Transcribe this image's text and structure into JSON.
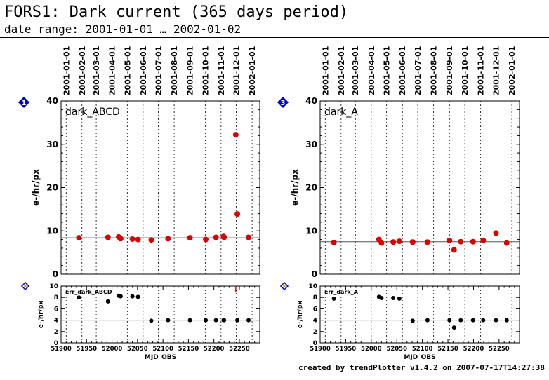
{
  "page": {
    "title": "FORS1: Dark current (365 days period)",
    "subtitle": "date range: 2001-01-01 … 2002-01-02",
    "credit": "created by trendPlotter v1.4.2 on 2007-07-17T14:27:38"
  },
  "chart_data": [
    {
      "type": "scatter",
      "badge": "1",
      "label": "dark_ABCD",
      "xlabel": "",
      "ylabel": "e-/hr/px",
      "xlim": [
        51900,
        52290
      ],
      "ylim": [
        0,
        40
      ],
      "yticks": [
        0,
        10,
        20,
        30,
        40
      ],
      "date_ticks": [
        "2001-01-01",
        "2001-02-01",
        "2001-03-01",
        "2001-04-01",
        "2001-05-01",
        "2001-06-01",
        "2001-07-01",
        "2001-08-01",
        "2001-09-01",
        "2001-10-01",
        "2001-11-01",
        "2001-12-01",
        "2002-01-01"
      ],
      "date_ticks_mjd": [
        51910,
        51941,
        51969,
        52000,
        52030,
        52061,
        52091,
        52122,
        52153,
        52183,
        52214,
        52244,
        52275
      ],
      "reference_line": 8.4,
      "marker_color": "#dd0000",
      "x": [
        51935,
        51992,
        52013,
        52017,
        52040,
        52051,
        52077,
        52110,
        52153,
        52184,
        52204,
        52219,
        52220,
        52243,
        52246,
        52268
      ],
      "y": [
        8.4,
        8.5,
        8.6,
        8.2,
        8.1,
        8.0,
        7.9,
        8.2,
        8.4,
        8.0,
        8.5,
        8.7,
        8.5,
        32.2,
        13.9,
        8.5
      ]
    },
    {
      "type": "scatter",
      "badge": "2",
      "label": "err_dark_ABCD",
      "xlabel": "MJD_OBS",
      "ylabel": "e-/hr/px",
      "xlim": [
        51900,
        52290
      ],
      "ylim": [
        0,
        10
      ],
      "yticks": [
        0,
        2,
        4,
        6,
        8,
        10
      ],
      "xticks": [
        51900,
        51950,
        52000,
        52050,
        52100,
        52150,
        52200,
        52250
      ],
      "date_ticks_mjd": [
        51910,
        51941,
        51969,
        52000,
        52030,
        52061,
        52091,
        52122,
        52153,
        52183,
        52214,
        52244,
        52275
      ],
      "reference_line": 4.0,
      "marker_color": "#000000",
      "x": [
        51935,
        51992,
        52013,
        52017,
        52040,
        52051,
        52077,
        52110,
        52153,
        52184,
        52204,
        52219,
        52220,
        52246,
        52268
      ],
      "y": [
        8.0,
        7.3,
        8.3,
        8.2,
        8.2,
        8.1,
        3.9,
        4.0,
        4.0,
        4.0,
        4.0,
        4.0,
        4.0,
        4.0,
        4.0
      ],
      "offscale_x": [
        52243
      ]
    },
    {
      "type": "scatter",
      "badge": "3",
      "label": "dark_A",
      "xlabel": "",
      "ylabel": "e-/hr/px",
      "xlim": [
        51900,
        52290
      ],
      "ylim": [
        0,
        40
      ],
      "yticks": [
        0,
        10,
        20,
        30,
        40
      ],
      "date_ticks": [
        "2001-01-01",
        "2001-02-01",
        "2001-03-01",
        "2001-04-01",
        "2001-05-01",
        "2001-06-01",
        "2001-07-01",
        "2001-08-01",
        "2001-09-01",
        "2001-10-01",
        "2001-11-01",
        "2001-12-01",
        "2002-01-01"
      ],
      "date_ticks_mjd": [
        51910,
        51941,
        51969,
        52000,
        52030,
        52061,
        52091,
        52122,
        52153,
        52183,
        52214,
        52244,
        52275
      ],
      "reference_line": 7.5,
      "marker_color": "#dd0000",
      "x": [
        51927,
        52015,
        52020,
        52043,
        52055,
        52081,
        52110,
        52153,
        52162,
        52175,
        52199,
        52219,
        52244,
        52265
      ],
      "y": [
        7.3,
        8.0,
        7.2,
        7.4,
        7.6,
        7.4,
        7.4,
        7.8,
        5.6,
        7.5,
        7.5,
        7.8,
        9.5,
        7.2
      ]
    },
    {
      "type": "scatter",
      "badge": "4",
      "label": "err_dark_A",
      "xlabel": "MJD_OBS",
      "ylabel": "e-/hr/px",
      "xlim": [
        51900,
        52290
      ],
      "ylim": [
        0,
        10
      ],
      "yticks": [
        0,
        2,
        4,
        6,
        8,
        10
      ],
      "xticks": [
        51900,
        51950,
        52000,
        52050,
        52100,
        52150,
        52200,
        52250
      ],
      "date_ticks_mjd": [
        51910,
        51941,
        51969,
        52000,
        52030,
        52061,
        52091,
        52122,
        52153,
        52183,
        52214,
        52244,
        52275
      ],
      "reference_line": 4.0,
      "marker_color": "#000000",
      "x": [
        51927,
        52015,
        52020,
        52043,
        52055,
        52081,
        52110,
        52153,
        52162,
        52175,
        52199,
        52219,
        52244,
        52265
      ],
      "y": [
        7.8,
        8.1,
        7.9,
        7.9,
        7.8,
        3.9,
        4.0,
        4.0,
        2.7,
        4.0,
        4.0,
        4.0,
        4.0,
        4.0
      ]
    }
  ]
}
